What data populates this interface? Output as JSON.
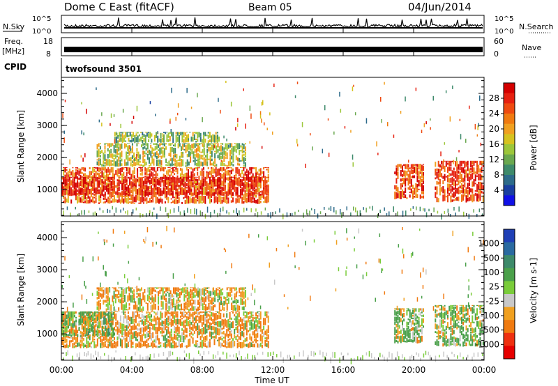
{
  "header": {
    "title": "Dome C East (fitACF)",
    "beam": "Beam 05",
    "date": "04/Jun/2014"
  },
  "noise_panel": {
    "left_label": "N.Sky",
    "left_ticks": [
      "10^5",
      "10^0"
    ],
    "right_ticks": [
      "10^5",
      "10^0"
    ],
    "right_label": "N.Search"
  },
  "freq_panel": {
    "left_label_top": "Freq.",
    "left_label_unit": "[MHz]",
    "left_ticks": [
      "18",
      "8"
    ],
    "right_ticks": [
      "60",
      "0"
    ],
    "right_label": "Nave"
  },
  "cpid": {
    "label": "CPID",
    "value": "twofsound 3501"
  },
  "x_axis": {
    "label": "Time UT",
    "ticks": [
      "00:00",
      "04:00",
      "08:00",
      "12:00",
      "16:00",
      "20:00",
      "00:00"
    ],
    "range_hours": [
      0,
      24
    ]
  },
  "y_axis": {
    "label": "Slant Range [km]",
    "ticks": [
      "1000",
      "2000",
      "3000",
      "4000"
    ],
    "range_km": [
      180,
      4500
    ]
  },
  "power_scale": {
    "label": "Power [dB]",
    "ticks": [
      "4",
      "8",
      "12",
      "16",
      "20",
      "24",
      "28"
    ],
    "colors": [
      "#1010e6",
      "#1a3fa0",
      "#2d6b8a",
      "#3e8a6b",
      "#6aa84f",
      "#9cc63a",
      "#d6c21f",
      "#f0a020",
      "#f07a10",
      "#ee4a10",
      "#e62010",
      "#d40000"
    ]
  },
  "velocity_scale": {
    "label": "Velocity [m s-1]",
    "ticks": [
      "1000",
      "500",
      "100",
      "25",
      "-25",
      "-100",
      "-500",
      "-1000"
    ],
    "colors": [
      "#1f3fb5",
      "#2a6aa0",
      "#3d8a6a",
      "#4aa04a",
      "#7acc3a",
      "#c8c8c8",
      "#f0a020",
      "#f07a10",
      "#ee3010",
      "#e60000"
    ]
  },
  "chart_data": {
    "type": "heatmap",
    "title": "Dome C East (fitACF)",
    "xlabel": "Time UT",
    "x_ticks": [
      "00:00",
      "04:00",
      "08:00",
      "12:00",
      "16:00",
      "20:00",
      "00:00"
    ],
    "xlim": [
      0,
      24
    ],
    "ylabel": "Slant Range [km]",
    "y_ticks": [
      1000,
      2000,
      3000,
      4000
    ],
    "ylim": [
      180,
      4500
    ],
    "panels": [
      {
        "name": "Power [dB]",
        "color_ticks": [
          4,
          8,
          12,
          16,
          20,
          24,
          28
        ],
        "scatter_regions": [
          {
            "t0": 0.0,
            "t1": 11.8,
            "r0": 550,
            "r1": 1700,
            "level": 24
          },
          {
            "t0": 0.0,
            "t1": 11.8,
            "r0": 800,
            "r1": 1400,
            "level": 28
          },
          {
            "t0": 2.0,
            "t1": 10.5,
            "r0": 1700,
            "r1": 2450,
            "level": 14
          },
          {
            "t0": 3.0,
            "t1": 9.0,
            "r0": 2450,
            "r1": 2800,
            "level": 12
          },
          {
            "t0": 18.9,
            "t1": 20.6,
            "r0": 700,
            "r1": 1800,
            "level": 26
          },
          {
            "t0": 21.2,
            "t1": 24.0,
            "r0": 600,
            "r1": 1900,
            "level": 25
          }
        ]
      },
      {
        "name": "Velocity [m s-1]",
        "color_ticks": [
          1000,
          500,
          100,
          25,
          -25,
          -100,
          -500,
          -1000
        ],
        "scatter_regions": [
          {
            "t0": 0.0,
            "t1": 11.8,
            "r0": 550,
            "r1": 1700,
            "level": -120
          },
          {
            "t0": 2.0,
            "t1": 10.5,
            "r0": 1700,
            "r1": 2450,
            "level": -80
          },
          {
            "t0": 0.0,
            "t1": 3.0,
            "r0": 900,
            "r1": 1700,
            "level": 200
          },
          {
            "t0": 18.9,
            "t1": 20.6,
            "r0": 700,
            "r1": 1800,
            "level": 150
          },
          {
            "t0": 21.2,
            "t1": 24.0,
            "r0": 600,
            "r1": 1900,
            "level": 120
          }
        ]
      }
    ]
  }
}
